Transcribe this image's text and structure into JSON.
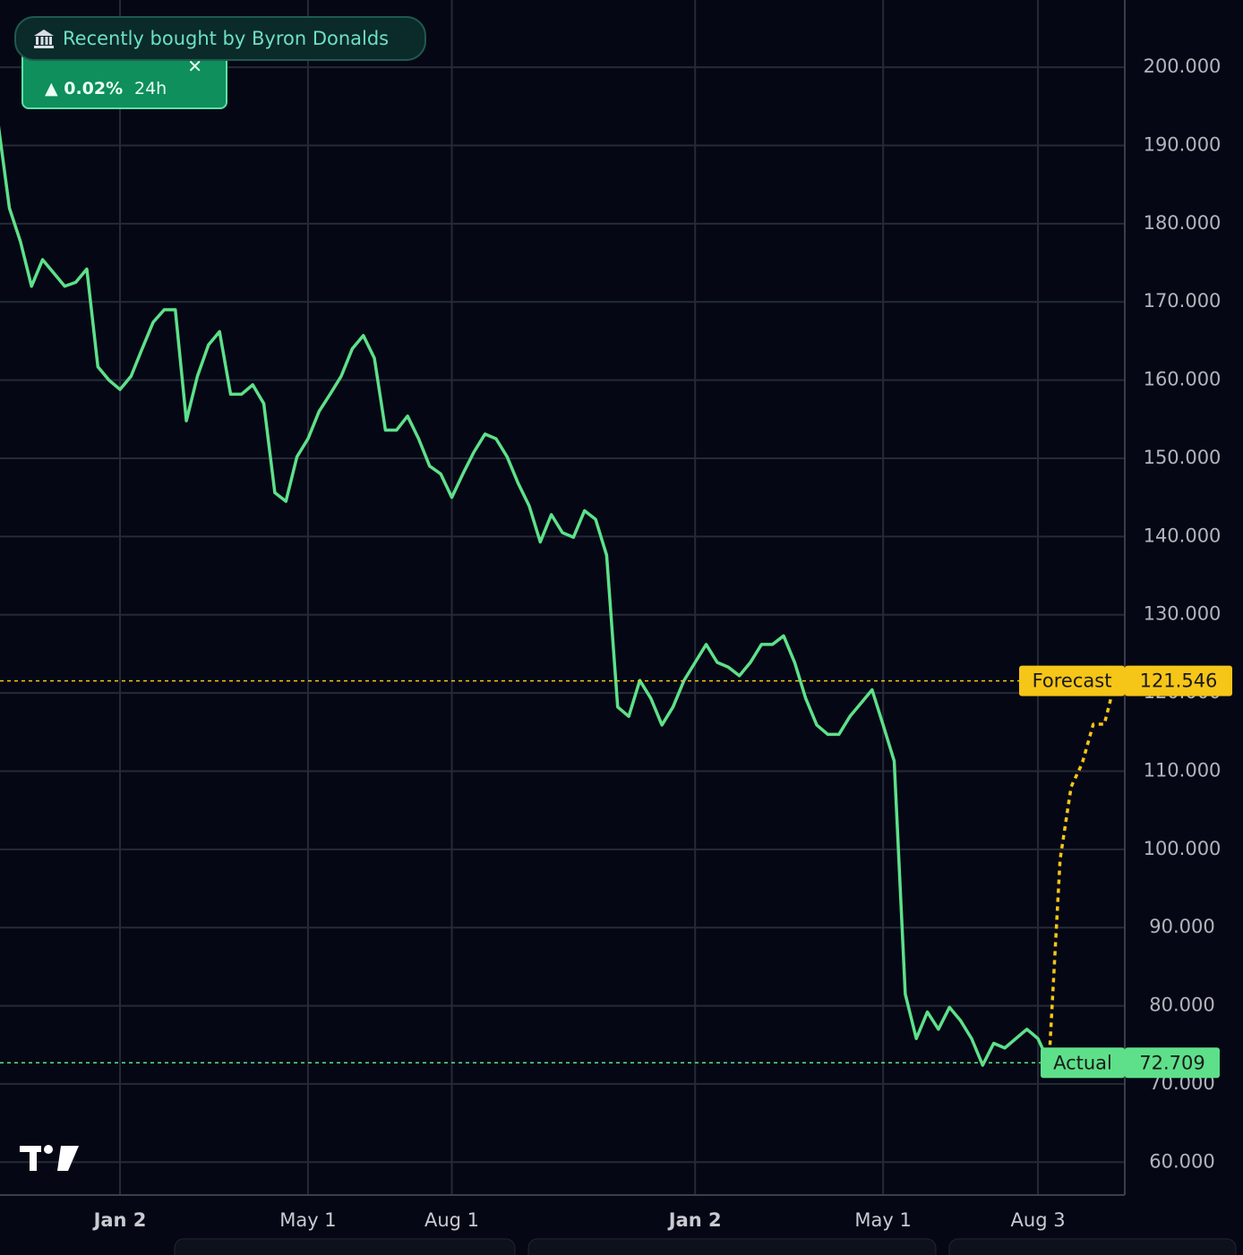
{
  "notification": {
    "text": "Recently bought by Byron Donalds",
    "change": "▲ 0.02%",
    "period": "24h"
  },
  "chart_data": {
    "type": "line",
    "categories": [
      null,
      null,
      null,
      null,
      null,
      null,
      null,
      null,
      null,
      null,
      null,
      "Jan 2",
      null,
      null,
      null,
      null,
      null,
      null,
      null,
      null,
      null,
      null,
      null,
      null,
      null,
      null,
      null,
      null,
      "May 1",
      null,
      null,
      null,
      null,
      null,
      null,
      null,
      null,
      null,
      null,
      null,
      null,
      "Aug 1",
      null,
      null,
      null,
      null,
      null,
      null,
      null,
      null,
      null,
      null,
      null,
      null,
      null,
      null,
      null,
      null,
      null,
      null,
      null,
      null,
      null,
      "Jan 2",
      null,
      null,
      null,
      null,
      null,
      null,
      null,
      null,
      null,
      null,
      null,
      null,
      null,
      null,
      null,
      null,
      "May 1",
      null,
      null,
      null,
      null,
      null,
      null,
      null,
      null,
      null,
      null,
      null,
      null,
      null,
      "Aug 3",
      null,
      null,
      null,
      null,
      null,
      null,
      null
    ],
    "series": [
      {
        "name": "Actual",
        "color": "#5ee08a",
        "values": [
          192.6,
          182,
          177.7,
          172,
          175.4,
          173.7,
          172,
          172.5,
          174.2,
          161.7,
          160,
          158.8,
          160.5,
          164,
          167.4,
          169,
          169,
          154.8,
          160.5,
          164.5,
          166.2,
          158.2,
          158.2,
          159.4,
          157,
          145.6,
          144.5,
          150.2,
          152.5,
          156,
          158.2,
          160.5,
          164,
          165.7,
          162.8,
          153.6,
          153.6,
          155.4,
          152.5,
          149,
          148,
          145,
          148,
          150.8,
          153.1,
          152.5,
          150.2,
          146.8,
          143.9,
          139.3,
          142.8,
          140.5,
          139.9,
          143.3,
          142.2,
          137.6,
          118.2,
          117,
          121.6,
          119.3,
          115.9,
          118.2,
          121.6,
          123.9,
          126.2,
          123.9,
          123.3,
          122.2,
          123.9,
          126.2,
          126.2,
          127.3,
          123.9,
          119.3,
          115.9,
          114.7,
          114.7,
          117,
          118.7,
          120.4,
          115.9,
          111.3,
          81.5,
          75.8,
          79.2,
          77,
          79.8,
          78.1,
          75.8,
          72.4,
          75.2,
          74.6,
          75.8,
          77,
          75.8,
          72.709,
          null,
          null,
          null,
          null,
          null,
          null
        ]
      },
      {
        "name": "Forecast",
        "color": "#f5c518",
        "dashed": true,
        "values": [
          null,
          null,
          null,
          null,
          null,
          null,
          null,
          null,
          null,
          null,
          null,
          null,
          null,
          null,
          null,
          null,
          null,
          null,
          null,
          null,
          null,
          null,
          null,
          null,
          null,
          null,
          null,
          null,
          null,
          null,
          null,
          null,
          null,
          null,
          null,
          null,
          null,
          null,
          null,
          null,
          null,
          null,
          null,
          null,
          null,
          null,
          null,
          null,
          null,
          null,
          null,
          null,
          null,
          null,
          null,
          null,
          null,
          null,
          null,
          null,
          null,
          null,
          null,
          null,
          null,
          null,
          null,
          null,
          null,
          null,
          null,
          null,
          null,
          null,
          null,
          null,
          null,
          null,
          null,
          null,
          null,
          null,
          null,
          null,
          null,
          null,
          null,
          null,
          null,
          null,
          null,
          null,
          null,
          null,
          null,
          72.709,
          98.7,
          108,
          111,
          116,
          116,
          121.546
        ]
      }
    ],
    "ylim": [
      55.8,
      208.6
    ],
    "yticks": [
      {
        "value": 60,
        "label": "60.000"
      },
      {
        "value": 70,
        "label": "70.000"
      },
      {
        "value": 80,
        "label": "80.000"
      },
      {
        "value": 90,
        "label": "90.000"
      },
      {
        "value": 100,
        "label": "100.000"
      },
      {
        "value": 110,
        "label": "110.000"
      },
      {
        "value": 120,
        "label": "120.000"
      },
      {
        "value": 130,
        "label": "130.000"
      },
      {
        "value": 140,
        "label": "140.000"
      },
      {
        "value": 150,
        "label": "150.000"
      },
      {
        "value": 160,
        "label": "160.000"
      },
      {
        "value": 170,
        "label": "170.000"
      },
      {
        "value": 180,
        "label": "180.000"
      },
      {
        "value": 190,
        "label": "190.000"
      },
      {
        "value": 200,
        "label": "200.000"
      }
    ],
    "grid": true
  }
}
